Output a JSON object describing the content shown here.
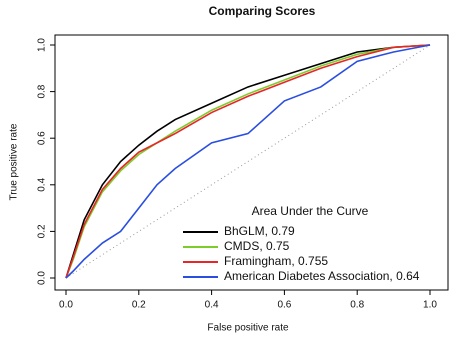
{
  "chart_data": {
    "type": "line",
    "title": "Comparing Scores",
    "x_label": "False positive rate",
    "y_label": "True positive rate",
    "legend_title": "Area Under the Curve",
    "x": [
      0,
      0.02,
      0.05,
      0.1,
      0.15,
      0.2,
      0.25,
      0.3,
      0.4,
      0.5,
      0.6,
      0.7,
      0.8,
      0.9,
      1
    ],
    "series": [
      {
        "name": "BhGLM, 0.79",
        "color": "#000000",
        "values": [
          0,
          0.1,
          0.25,
          0.4,
          0.5,
          0.57,
          0.63,
          0.68,
          0.75,
          0.82,
          0.87,
          0.92,
          0.97,
          0.99,
          1
        ]
      },
      {
        "name": "CMDS, 0.75",
        "color": "#7ccd2b",
        "values": [
          0,
          0.08,
          0.22,
          0.37,
          0.46,
          0.53,
          0.58,
          0.63,
          0.72,
          0.79,
          0.85,
          0.91,
          0.96,
          0.99,
          1
        ]
      },
      {
        "name": "Framingham, 0.755",
        "color": "#e8262a",
        "values": [
          0,
          0.09,
          0.23,
          0.38,
          0.47,
          0.54,
          0.58,
          0.62,
          0.71,
          0.78,
          0.84,
          0.9,
          0.95,
          0.99,
          1
        ]
      },
      {
        "name": "American Diabetes Association, 0.64",
        "color": "#2a4ee0",
        "values": [
          0,
          0.03,
          0.08,
          0.15,
          0.2,
          0.3,
          0.4,
          0.47,
          0.58,
          0.62,
          0.76,
          0.82,
          0.93,
          0.97,
          1
        ]
      }
    ],
    "xlim": [
      0,
      1
    ],
    "ylim": [
      0,
      1
    ],
    "xticks": [
      {
        "value": 0,
        "label": "0.0"
      },
      0.2,
      0.4,
      0.6,
      0.8,
      {
        "value": 1,
        "label": "1.0"
      }
    ],
    "yticks": [
      {
        "value": 0,
        "label": "0.0"
      },
      0.2,
      0.4,
      0.6,
      0.8,
      {
        "value": 1,
        "label": "1.0"
      }
    ],
    "diagonal": true
  }
}
